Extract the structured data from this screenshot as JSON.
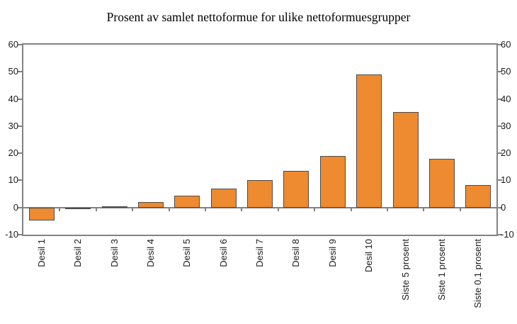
{
  "title": "Prosent av samlet nettoformue for ulike nettoformuesgrupper",
  "chart_data": {
    "type": "bar",
    "title": "Prosent av samlet nettoformue for ulike nettoformuesgrupper",
    "categories": [
      "Desil 1",
      "Desil 2",
      "Desil 3",
      "Desil 4",
      "Desil 5",
      "Desil 6",
      "Desil 7",
      "Desil 8",
      "Desil 9",
      "Desil 10",
      "Siste 5 prosent",
      "Siste 1 prosent",
      "Siste 0,1 prosent"
    ],
    "values": [
      -4.8,
      -0.4,
      0.4,
      2.0,
      4.5,
      7.0,
      10.0,
      13.5,
      19.0,
      49.0,
      35.2,
      18.0,
      8.2
    ],
    "xlabel": "",
    "ylabel": "",
    "ylim": [
      -10,
      60
    ],
    "yticks": [
      -10,
      0,
      10,
      20,
      30,
      40,
      50,
      60
    ],
    "y_axis_sides": "both",
    "grid": false,
    "legend": "none",
    "bar_color": "#EE8A2F",
    "bar_border_color": "#4d4d4d",
    "axis_color": "#828282",
    "text_color": "#1a1a1a",
    "background_color": "#ffffff"
  }
}
